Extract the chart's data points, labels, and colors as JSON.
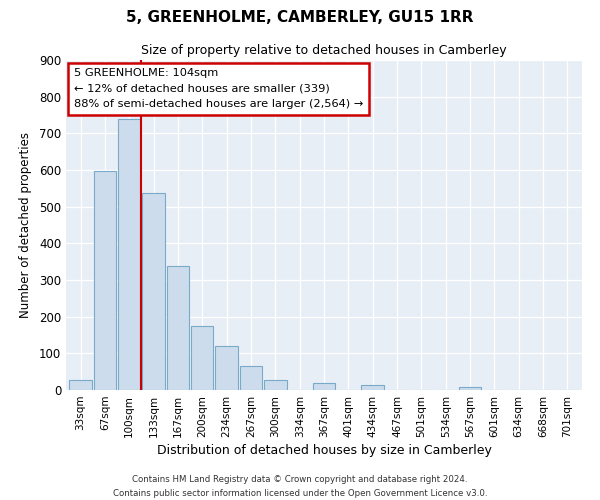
{
  "title": "5, GREENHOLME, CAMBERLEY, GU15 1RR",
  "subtitle": "Size of property relative to detached houses in Camberley",
  "xlabel": "Distribution of detached houses by size in Camberley",
  "ylabel": "Number of detached properties",
  "bar_labels": [
    "33sqm",
    "67sqm",
    "100sqm",
    "133sqm",
    "167sqm",
    "200sqm",
    "234sqm",
    "267sqm",
    "300sqm",
    "334sqm",
    "367sqm",
    "401sqm",
    "434sqm",
    "467sqm",
    "501sqm",
    "534sqm",
    "567sqm",
    "601sqm",
    "634sqm",
    "668sqm",
    "701sqm"
  ],
  "bar_values": [
    27,
    597,
    740,
    537,
    338,
    175,
    120,
    66,
    27,
    0,
    20,
    0,
    15,
    0,
    0,
    0,
    9,
    0,
    0,
    0,
    0
  ],
  "bar_color": "#cddcec",
  "bar_edge_color": "#7aaaca",
  "vline_color": "#cc0000",
  "annotation_title": "5 GREENHOLME: 104sqm",
  "annotation_line1": "← 12% of detached houses are smaller (339)",
  "annotation_line2": "88% of semi-detached houses are larger (2,564) →",
  "annotation_box_edge": "#cc0000",
  "ylim": [
    0,
    900
  ],
  "yticks": [
    0,
    100,
    200,
    300,
    400,
    500,
    600,
    700,
    800,
    900
  ],
  "footer1": "Contains HM Land Registry data © Crown copyright and database right 2024.",
  "footer2": "Contains public sector information licensed under the Open Government Licence v3.0.",
  "bg_color": "#ffffff",
  "plot_bg_color": "#e8eef5"
}
